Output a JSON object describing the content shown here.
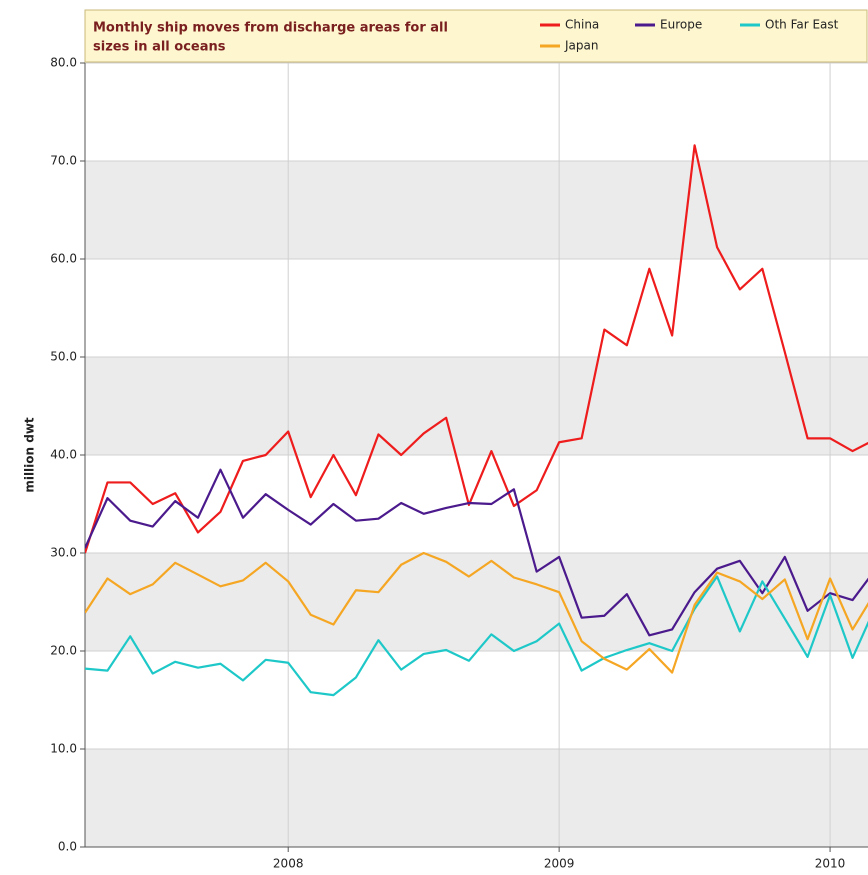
{
  "chart_data": {
    "type": "line",
    "title": [
      "Monthly ship moves from discharge areas for all",
      "sizes in all oceans"
    ],
    "y_label": "million dwt",
    "x": [
      2007.25,
      2007.333,
      2007.417,
      2007.5,
      2007.583,
      2007.667,
      2007.75,
      2007.833,
      2007.917,
      2008,
      2008.083,
      2008.167,
      2008.25,
      2008.333,
      2008.417,
      2008.5,
      2008.583,
      2008.667,
      2008.75,
      2008.833,
      2008.917,
      2009,
      2009.083,
      2009.167,
      2009.25,
      2009.333,
      2009.417,
      2009.5,
      2009.583,
      2009.667,
      2009.75,
      2009.833,
      2009.917,
      2010,
      2010.083,
      2010.167
    ],
    "series": [
      {
        "name": "China",
        "color": "#ee1c1c",
        "values": [
          30.0,
          37.2,
          37.2,
          35,
          36.1,
          32.1,
          34.2,
          39.4,
          40,
          42.4,
          35.7,
          40,
          35.9,
          42.1,
          40,
          42.2,
          43.8,
          34.9,
          40.4,
          34.8,
          36.4,
          41.3,
          41.7,
          52.8,
          51.2,
          59,
          52.2,
          71.6,
          61.2,
          56.9,
          59,
          50.5,
          41.7,
          41.7,
          40.4,
          41.6
        ]
      },
      {
        "name": "Europe",
        "color": "#4b1a8c",
        "values": [
          30.5,
          35.6,
          33.3,
          32.7,
          35.3,
          33.6,
          38.5,
          33.6,
          36,
          34.4,
          32.9,
          35,
          33.3,
          33.5,
          35.1,
          34,
          34.6,
          35.1,
          35,
          36.5,
          28.1,
          29.6,
          23.4,
          23.6,
          25.8,
          21.6,
          22.2,
          26,
          28.4,
          29.2,
          25.9,
          29.6,
          24.1,
          25.9,
          25.2,
          28.3
        ]
      },
      {
        "name": "Oth Far East",
        "color": "#1fc8c8",
        "values": [
          18.2,
          18,
          21.5,
          17.7,
          18.9,
          18.3,
          18.7,
          17,
          19.1,
          18.8,
          15.8,
          15.5,
          17.3,
          21.1,
          18.1,
          19.7,
          20.1,
          19,
          21.7,
          20,
          21,
          22.8,
          18,
          19.3,
          20.1,
          20.8,
          20,
          24.3,
          27.6,
          22,
          27.1,
          23.3,
          19.4,
          25.7,
          19.3,
          24.5
        ]
      },
      {
        "name": "Japan",
        "color": "#f5a623",
        "values": [
          23.9,
          27.4,
          25.8,
          26.8,
          29,
          27.8,
          26.6,
          27.2,
          29,
          27.1,
          23.7,
          22.7,
          26.2,
          26,
          28.8,
          30,
          29.1,
          27.6,
          29.2,
          27.5,
          26.8,
          26,
          21,
          19.2,
          18.1,
          20.2,
          17.8,
          24.7,
          28,
          27.1,
          25.3,
          27.3,
          21.2,
          27.4,
          22.2,
          26
        ]
      }
    ],
    "xlim": [
      2007.25,
      2010.14
    ],
    "xticks": [
      2008,
      2009,
      2010
    ],
    "ylim": [
      0,
      80
    ],
    "yticks": [
      {
        "value": 0,
        "label": "0.0"
      },
      {
        "value": 10,
        "label": "10.0"
      },
      {
        "value": 20,
        "label": "20.0"
      },
      {
        "value": 30,
        "label": "30.0"
      },
      {
        "value": 40,
        "label": "40.0"
      },
      {
        "value": 50,
        "label": "50.0"
      },
      {
        "value": 60,
        "label": "60.0"
      },
      {
        "value": 70,
        "label": "70.0"
      },
      {
        "value": 80,
        "label": "80.0"
      }
    ],
    "grid": true
  }
}
